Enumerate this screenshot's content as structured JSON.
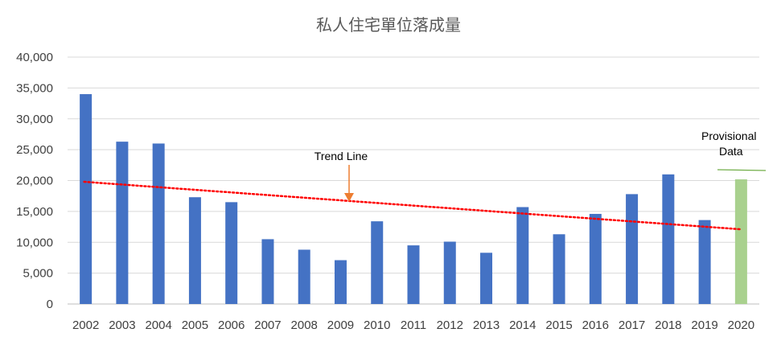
{
  "chart_data": {
    "type": "bar",
    "title": "私人住宅單位落成量",
    "xlabel": "",
    "ylabel": "",
    "ylim": [
      0,
      40000
    ],
    "yticks": [
      0,
      5000,
      10000,
      15000,
      20000,
      25000,
      30000,
      35000,
      40000
    ],
    "ytick_labels": [
      "0",
      "5,000",
      "10,000",
      "15,000",
      "20,000",
      "25,000",
      "30,000",
      "35,000",
      "40,000"
    ],
    "grid": true,
    "legend": "none",
    "categories": [
      "2002",
      "2003",
      "2004",
      "2005",
      "2006",
      "2007",
      "2008",
      "2009",
      "2010",
      "2011",
      "2012",
      "2013",
      "2014",
      "2015",
      "2016",
      "2017",
      "2018",
      "2019",
      "2020"
    ],
    "values": [
      34000,
      26300,
      26000,
      17300,
      16500,
      10500,
      8800,
      7100,
      13400,
      9500,
      10100,
      8300,
      15700,
      11300,
      14600,
      17800,
      21000,
      13600,
      20200
    ],
    "bar_color": "#4472C4",
    "highlight_color": "#A9D18E",
    "highlight_index": 18,
    "trend_line": {
      "from_index": 0,
      "to_index": 18,
      "start": 19800,
      "end": 12100,
      "color": "#FF0000",
      "style": "dotted"
    },
    "annotations": {
      "trend_label": "Trend Line",
      "trend_arrow_color": "#ED7D31",
      "provisional_line1": "Provisional",
      "provisional_line2": "Data",
      "provisional_marker_color": "#70AD47"
    }
  }
}
